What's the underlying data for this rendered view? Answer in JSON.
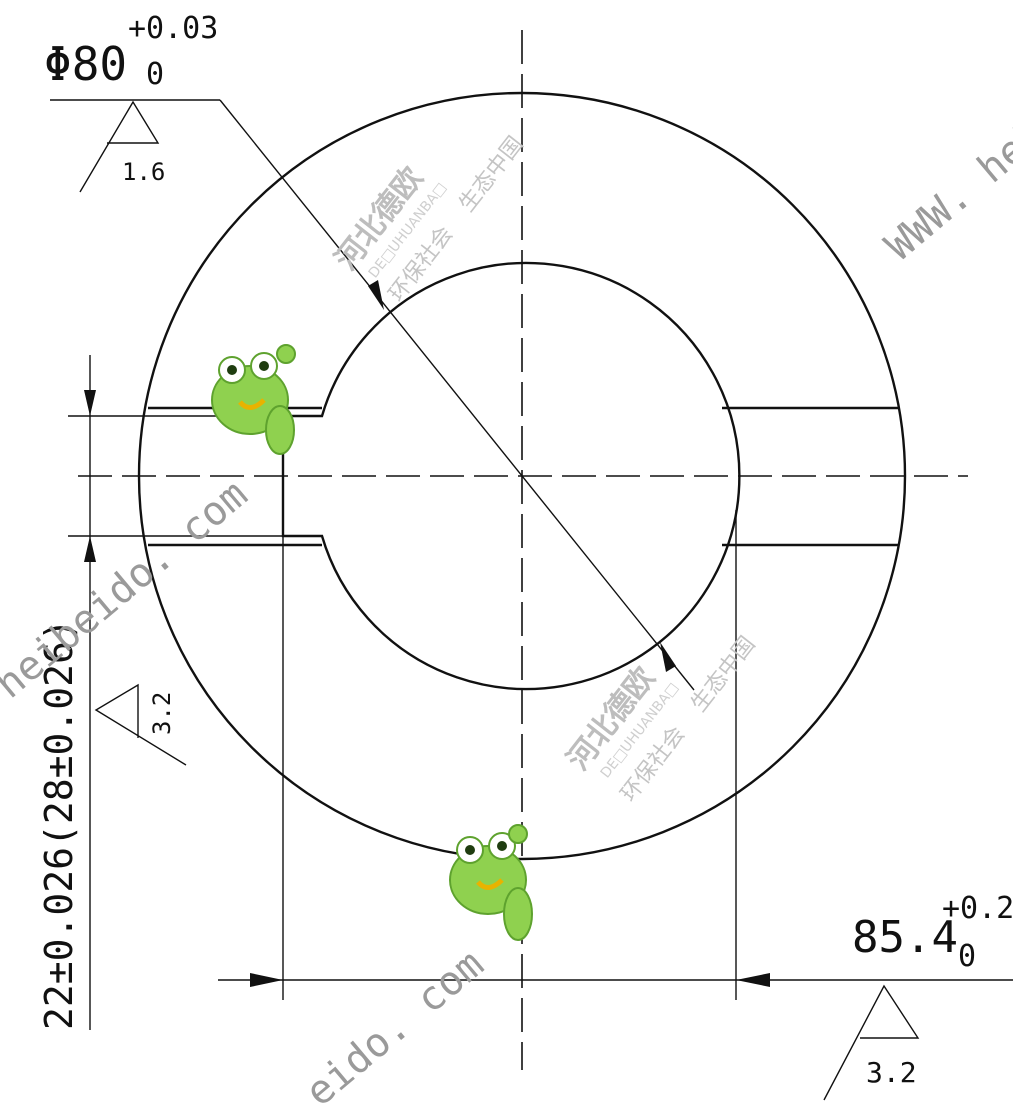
{
  "dimensions": {
    "bore_diameter": {
      "symbol": "Φ80",
      "upper_tol": "+0.03",
      "lower_tol": "0",
      "roughness": "1.6"
    },
    "slot_width": {
      "text": "22±0.026(28±0.026)",
      "roughness": "3.2"
    },
    "overall_length": {
      "main": "85.4",
      "upper_tol": "+0.2",
      "lower_tol": "0",
      "roughness": "3.2"
    }
  },
  "watermarks": {
    "company_cn": "河北德欧",
    "company_en": "DE□UHUANBA□",
    "slogan_1": "环保社会",
    "slogan_2": "生态中国",
    "url_full": "WWW. heb",
    "url_left": "heibeido. com",
    "url_bottom": "eido. com"
  },
  "colors": {
    "line": "#111111",
    "watermark": "#bdbdbd",
    "frog": "#7cc242"
  }
}
